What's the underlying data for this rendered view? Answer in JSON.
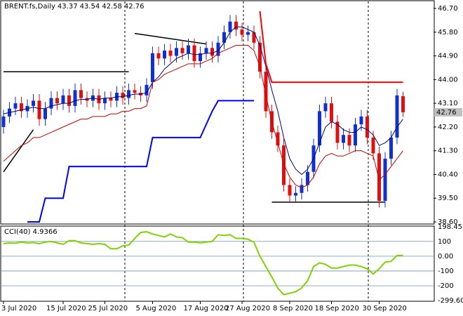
{
  "chart_data": [
    {
      "type": "candlestick",
      "title": "BRENT.fs,Daily",
      "categories": [
        "3 Jul 2020",
        null,
        null,
        null,
        null,
        null,
        null,
        null,
        null,
        null,
        "15 Jul 2020",
        null,
        null,
        null,
        null,
        null,
        null,
        "25 Jul 2020",
        null,
        null,
        null,
        null,
        null,
        null,
        null,
        "5 Aug 2020",
        null,
        null,
        null,
        null,
        null,
        null,
        null,
        "17 Aug 2020",
        null,
        null,
        null,
        null,
        null,
        null,
        "27 Aug 2020",
        null,
        null,
        null,
        null,
        null,
        null,
        null,
        "8 Sep 2020",
        null,
        null,
        null,
        null,
        null,
        null,
        "18 Sep 2020",
        null,
        null,
        null,
        null,
        null,
        null,
        null,
        "30 Sep 2020",
        null,
        null,
        null,
        null
      ],
      "open": [
        42.2,
        42.6,
        42.9,
        43.1,
        42.8,
        43.0,
        43.2,
        42.5,
        42.9,
        43.3,
        43.1,
        43.4,
        43.0,
        43.6,
        43.3,
        43.2,
        43.4,
        43.1,
        43.3,
        43.2,
        43.5,
        43.3,
        43.6,
        43.5,
        43.4,
        43.9,
        45.0,
        44.8,
        45.1,
        44.9,
        45.2,
        45.0,
        45.3,
        44.7,
        45.0,
        45.2,
        44.9,
        45.4,
        45.8,
        46.2,
        45.9,
        45.7,
        45.8,
        45.4,
        44.3,
        42.8,
        42.0,
        41.5,
        40.0,
        39.6,
        39.7,
        40.0,
        40.5,
        41.5,
        42.8,
        43.1,
        42.4,
        41.6,
        41.9,
        41.5,
        42.3,
        42.6,
        41.8,
        41.2,
        39.4,
        41.0,
        41.8,
        43.37
      ],
      "high": [
        42.85,
        43.15,
        43.35,
        43.35,
        43.25,
        43.45,
        43.45,
        43.15,
        43.55,
        43.55,
        43.65,
        43.65,
        43.85,
        43.85,
        43.55,
        43.65,
        43.65,
        43.55,
        43.55,
        43.75,
        43.75,
        43.85,
        43.85,
        43.75,
        44.05,
        45.25,
        45.25,
        45.35,
        45.35,
        45.45,
        45.45,
        45.55,
        45.55,
        45.25,
        45.45,
        45.45,
        45.65,
        46.05,
        46.45,
        46.45,
        46.15,
        46.05,
        46.05,
        45.65,
        44.55,
        43.05,
        42.25,
        41.75,
        40.25,
        39.95,
        40.25,
        40.75,
        41.75,
        43.05,
        43.35,
        43.35,
        42.65,
        42.15,
        42.15,
        42.55,
        42.85,
        42.85,
        42.05,
        41.45,
        41.25,
        42.05,
        43.65,
        43.54
      ],
      "low": [
        41.95,
        42.35,
        42.65,
        42.55,
        42.55,
        42.75,
        42.25,
        42.25,
        42.65,
        42.85,
        42.85,
        42.75,
        42.75,
        43.05,
        42.95,
        42.95,
        42.85,
        42.85,
        42.95,
        42.95,
        43.05,
        43.05,
        43.25,
        43.15,
        43.15,
        43.65,
        44.55,
        44.55,
        44.65,
        44.65,
        44.75,
        44.75,
        44.45,
        44.45,
        44.75,
        44.65,
        44.65,
        45.15,
        45.55,
        45.65,
        45.45,
        45.45,
        45.15,
        44.05,
        42.55,
        41.75,
        41.25,
        39.75,
        39.35,
        39.35,
        39.45,
        39.75,
        40.25,
        41.25,
        42.55,
        42.15,
        41.35,
        41.35,
        41.25,
        41.25,
        42.05,
        41.55,
        40.95,
        39.15,
        39.15,
        40.75,
        41.55,
        42.58
      ],
      "close": [
        42.6,
        42.9,
        43.1,
        42.8,
        43.0,
        43.2,
        42.5,
        42.9,
        43.3,
        43.1,
        43.4,
        43.0,
        43.6,
        43.3,
        43.2,
        43.4,
        43.1,
        43.3,
        43.2,
        43.5,
        43.3,
        43.6,
        43.5,
        43.4,
        43.8,
        45.0,
        44.8,
        45.1,
        44.9,
        45.2,
        45.0,
        45.3,
        44.7,
        45.0,
        45.2,
        44.9,
        45.4,
        45.8,
        46.2,
        45.9,
        45.7,
        45.8,
        45.4,
        44.3,
        42.8,
        42.0,
        41.5,
        40.0,
        39.6,
        39.7,
        40.0,
        40.5,
        41.5,
        42.8,
        43.1,
        42.4,
        41.6,
        41.9,
        41.5,
        42.3,
        42.6,
        41.8,
        41.2,
        39.4,
        41.0,
        41.8,
        43.4,
        42.76
      ],
      "up_color": "#1030d0",
      "down_color": "#e01010",
      "series": [
        {
          "color": "#000080",
          "width": 1,
          "values": [
            42.7,
            42.75,
            42.8,
            42.85,
            42.9,
            42.95,
            42.9,
            42.9,
            43.0,
            43.05,
            43.1,
            43.1,
            43.2,
            43.25,
            43.25,
            43.3,
            43.25,
            43.3,
            43.3,
            43.35,
            43.35,
            43.4,
            43.45,
            43.45,
            43.5,
            43.9,
            44.1,
            44.4,
            44.6,
            44.8,
            44.9,
            45.0,
            44.95,
            44.95,
            45.0,
            45.0,
            45.1,
            45.4,
            45.8,
            46.0,
            46.0,
            45.9,
            45.8,
            45.3,
            44.5,
            43.6,
            42.8,
            41.8,
            41.0,
            40.6,
            40.4,
            40.6,
            41.0,
            41.6,
            42.2,
            42.4,
            42.3,
            42.1,
            42.0,
            42.0,
            42.2,
            42.1,
            41.9,
            41.5,
            41.6,
            41.8,
            42.2,
            42.5
          ]
        },
        {
          "color": "#cc0000",
          "width": 1,
          "values": [
            40.9,
            41.1,
            41.3,
            41.5,
            41.6,
            41.8,
            41.8,
            41.9,
            42.0,
            42.1,
            42.2,
            42.3,
            42.4,
            42.5,
            42.5,
            42.6,
            42.6,
            42.6,
            42.7,
            42.7,
            42.8,
            42.8,
            42.9,
            42.9,
            43.0,
            43.9,
            44.0,
            44.2,
            44.3,
            44.4,
            44.5,
            44.6,
            44.6,
            44.6,
            44.7,
            44.8,
            45.0,
            45.1,
            45.2,
            45.3,
            45.3,
            45.3,
            45.1,
            44.5,
            43.4,
            42.4,
            41.6,
            40.8,
            40.3,
            40.0,
            39.9,
            40.0,
            40.3,
            40.8,
            41.1,
            41.2,
            41.1,
            41.1,
            41.2,
            41.3,
            41.3,
            41.2,
            41.1,
            40.2,
            40.4,
            40.7,
            41.0,
            41.3
          ]
        },
        {
          "color": "#0000ff",
          "width": 2,
          "values": [
            null,
            null,
            null,
            null,
            38.6,
            38.6,
            38.6,
            39.5,
            39.5,
            39.5,
            39.5,
            40.7,
            40.7,
            40.7,
            40.7,
            40.7,
            40.7,
            40.7,
            40.7,
            40.7,
            40.7,
            40.7,
            40.7,
            40.7,
            40.7,
            41.8,
            41.8,
            41.8,
            41.8,
            41.8,
            41.8,
            41.8,
            41.8,
            41.8,
            42.3,
            42.8,
            43.2,
            43.2,
            43.2,
            43.2,
            43.2,
            43.2,
            43.2,
            null,
            null,
            null,
            null,
            null,
            null,
            null,
            null,
            null,
            null,
            null,
            null,
            null,
            null,
            null,
            null,
            null,
            null,
            null,
            null,
            null,
            null,
            null,
            null,
            null
          ]
        },
        {
          "color": "#ff0000",
          "width": 2,
          "values": [
            null,
            null,
            null,
            null,
            null,
            null,
            null,
            null,
            null,
            null,
            null,
            null,
            null,
            null,
            null,
            null,
            null,
            null,
            null,
            null,
            null,
            null,
            null,
            null,
            null,
            null,
            null,
            null,
            null,
            null,
            null,
            null,
            null,
            null,
            null,
            null,
            null,
            null,
            null,
            null,
            null,
            null,
            null,
            46.6,
            44.6,
            43.9,
            43.9,
            43.9,
            43.9,
            43.9,
            43.9,
            43.9,
            43.9,
            43.9,
            43.9,
            43.9,
            43.9,
            43.9,
            43.9,
            43.9,
            43.9,
            43.9,
            43.9,
            43.9,
            43.9,
            43.9,
            43.9,
            43.9
          ]
        }
      ],
      "lines": [
        {
          "color": "#000000",
          "x": [
            0,
            21
          ],
          "y": [
            44.3,
            44.3
          ]
        },
        {
          "color": "#000000",
          "x": [
            45,
            64
          ],
          "y": [
            39.35,
            39.35
          ]
        },
        {
          "color": "#000000",
          "x": [
            0,
            5
          ],
          "y": [
            40.5,
            42.1
          ]
        },
        {
          "color": "#000000",
          "x": [
            22,
            34
          ],
          "y": [
            45.75,
            45.35
          ]
        }
      ],
      "ylim": [
        38.6,
        46.7
      ],
      "yticks": [
        {
          "value": 46.7,
          "label": "46.70"
        },
        {
          "value": 45.8,
          "label": "45.80"
        },
        {
          "value": 44.9,
          "label": "44.90"
        },
        {
          "value": 44.0,
          "label": "44.00"
        },
        {
          "value": 43.1,
          "label": "43.10"
        },
        {
          "value": 42.2,
          "label": "42.20"
        },
        {
          "value": 41.3,
          "label": "41.30"
        },
        {
          "value": 40.4,
          "label": "40.40"
        },
        {
          "value": 39.5,
          "label": "39.50"
        },
        {
          "value": 38.6,
          "label": "38.60"
        }
      ]
    },
    {
      "type": "line",
      "title": "CCI(40)",
      "color": "#7fd400",
      "values": [
        85,
        90,
        88,
        95,
        90,
        92,
        85,
        95,
        100,
        90,
        80,
        105,
        105,
        90,
        85,
        80,
        85,
        80,
        50,
        50,
        70,
        75,
        120,
        160,
        165,
        150,
        140,
        130,
        150,
        130,
        125,
        95,
        95,
        90,
        95,
        100,
        145,
        140,
        145,
        120,
        120,
        115,
        95,
        0,
        -70,
        -140,
        -215,
        -260,
        -250,
        -240,
        -215,
        -165,
        -70,
        -45,
        -55,
        -80,
        -80,
        -70,
        -60,
        -60,
        -70,
        -85,
        -120,
        -85,
        -40,
        -35,
        5,
        4.9366
      ],
      "ylim": [
        -299.603,
        198.4581
      ],
      "yticks": [
        198.4581,
        100,
        {
          "value": 0,
          "label": "0.00"
        },
        -100,
        -200,
        -299.603
      ],
      "grid": true
    }
  ]
}
